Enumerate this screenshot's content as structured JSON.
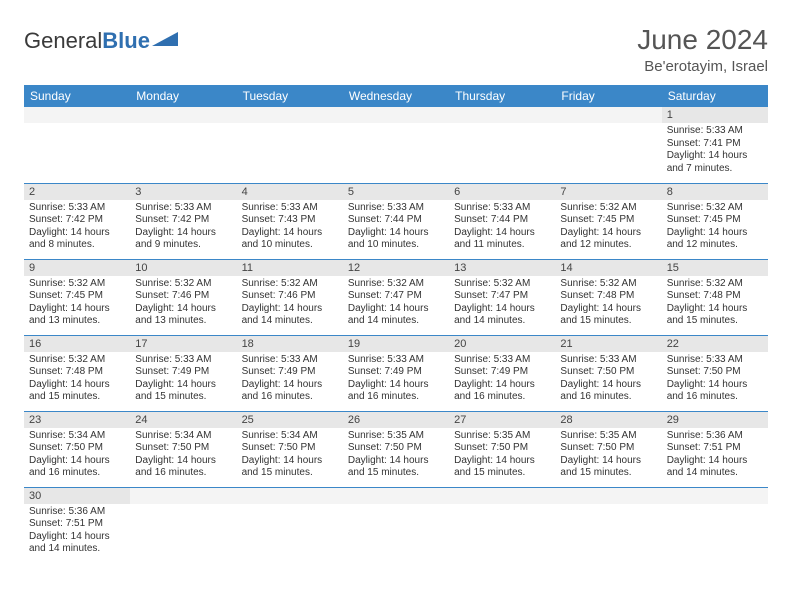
{
  "brand": {
    "part1": "General",
    "part2": "Blue"
  },
  "title": "June 2024",
  "location": "Be'erotayim, Israel",
  "colors": {
    "header_bg": "#3b87c8",
    "header_fg": "#ffffff",
    "daynum_bg": "#e7e7e7",
    "cell_border": "#3b87c8",
    "logo_blue": "#2f6fb0"
  },
  "weekdays": [
    "Sunday",
    "Monday",
    "Tuesday",
    "Wednesday",
    "Thursday",
    "Friday",
    "Saturday"
  ],
  "weeks": [
    [
      {
        "n": "",
        "lines": []
      },
      {
        "n": "",
        "lines": []
      },
      {
        "n": "",
        "lines": []
      },
      {
        "n": "",
        "lines": []
      },
      {
        "n": "",
        "lines": []
      },
      {
        "n": "",
        "lines": []
      },
      {
        "n": "1",
        "lines": [
          "Sunrise: 5:33 AM",
          "Sunset: 7:41 PM",
          "Daylight: 14 hours and 7 minutes."
        ]
      }
    ],
    [
      {
        "n": "2",
        "lines": [
          "Sunrise: 5:33 AM",
          "Sunset: 7:42 PM",
          "Daylight: 14 hours and 8 minutes."
        ]
      },
      {
        "n": "3",
        "lines": [
          "Sunrise: 5:33 AM",
          "Sunset: 7:42 PM",
          "Daylight: 14 hours and 9 minutes."
        ]
      },
      {
        "n": "4",
        "lines": [
          "Sunrise: 5:33 AM",
          "Sunset: 7:43 PM",
          "Daylight: 14 hours and 10 minutes."
        ]
      },
      {
        "n": "5",
        "lines": [
          "Sunrise: 5:33 AM",
          "Sunset: 7:44 PM",
          "Daylight: 14 hours and 10 minutes."
        ]
      },
      {
        "n": "6",
        "lines": [
          "Sunrise: 5:33 AM",
          "Sunset: 7:44 PM",
          "Daylight: 14 hours and 11 minutes."
        ]
      },
      {
        "n": "7",
        "lines": [
          "Sunrise: 5:32 AM",
          "Sunset: 7:45 PM",
          "Daylight: 14 hours and 12 minutes."
        ]
      },
      {
        "n": "8",
        "lines": [
          "Sunrise: 5:32 AM",
          "Sunset: 7:45 PM",
          "Daylight: 14 hours and 12 minutes."
        ]
      }
    ],
    [
      {
        "n": "9",
        "lines": [
          "Sunrise: 5:32 AM",
          "Sunset: 7:45 PM",
          "Daylight: 14 hours and 13 minutes."
        ]
      },
      {
        "n": "10",
        "lines": [
          "Sunrise: 5:32 AM",
          "Sunset: 7:46 PM",
          "Daylight: 14 hours and 13 minutes."
        ]
      },
      {
        "n": "11",
        "lines": [
          "Sunrise: 5:32 AM",
          "Sunset: 7:46 PM",
          "Daylight: 14 hours and 14 minutes."
        ]
      },
      {
        "n": "12",
        "lines": [
          "Sunrise: 5:32 AM",
          "Sunset: 7:47 PM",
          "Daylight: 14 hours and 14 minutes."
        ]
      },
      {
        "n": "13",
        "lines": [
          "Sunrise: 5:32 AM",
          "Sunset: 7:47 PM",
          "Daylight: 14 hours and 14 minutes."
        ]
      },
      {
        "n": "14",
        "lines": [
          "Sunrise: 5:32 AM",
          "Sunset: 7:48 PM",
          "Daylight: 14 hours and 15 minutes."
        ]
      },
      {
        "n": "15",
        "lines": [
          "Sunrise: 5:32 AM",
          "Sunset: 7:48 PM",
          "Daylight: 14 hours and 15 minutes."
        ]
      }
    ],
    [
      {
        "n": "16",
        "lines": [
          "Sunrise: 5:32 AM",
          "Sunset: 7:48 PM",
          "Daylight: 14 hours and 15 minutes."
        ]
      },
      {
        "n": "17",
        "lines": [
          "Sunrise: 5:33 AM",
          "Sunset: 7:49 PM",
          "Daylight: 14 hours and 15 minutes."
        ]
      },
      {
        "n": "18",
        "lines": [
          "Sunrise: 5:33 AM",
          "Sunset: 7:49 PM",
          "Daylight: 14 hours and 16 minutes."
        ]
      },
      {
        "n": "19",
        "lines": [
          "Sunrise: 5:33 AM",
          "Sunset: 7:49 PM",
          "Daylight: 14 hours and 16 minutes."
        ]
      },
      {
        "n": "20",
        "lines": [
          "Sunrise: 5:33 AM",
          "Sunset: 7:49 PM",
          "Daylight: 14 hours and 16 minutes."
        ]
      },
      {
        "n": "21",
        "lines": [
          "Sunrise: 5:33 AM",
          "Sunset: 7:50 PM",
          "Daylight: 14 hours and 16 minutes."
        ]
      },
      {
        "n": "22",
        "lines": [
          "Sunrise: 5:33 AM",
          "Sunset: 7:50 PM",
          "Daylight: 14 hours and 16 minutes."
        ]
      }
    ],
    [
      {
        "n": "23",
        "lines": [
          "Sunrise: 5:34 AM",
          "Sunset: 7:50 PM",
          "Daylight: 14 hours and 16 minutes."
        ]
      },
      {
        "n": "24",
        "lines": [
          "Sunrise: 5:34 AM",
          "Sunset: 7:50 PM",
          "Daylight: 14 hours and 16 minutes."
        ]
      },
      {
        "n": "25",
        "lines": [
          "Sunrise: 5:34 AM",
          "Sunset: 7:50 PM",
          "Daylight: 14 hours and 15 minutes."
        ]
      },
      {
        "n": "26",
        "lines": [
          "Sunrise: 5:35 AM",
          "Sunset: 7:50 PM",
          "Daylight: 14 hours and 15 minutes."
        ]
      },
      {
        "n": "27",
        "lines": [
          "Sunrise: 5:35 AM",
          "Sunset: 7:50 PM",
          "Daylight: 14 hours and 15 minutes."
        ]
      },
      {
        "n": "28",
        "lines": [
          "Sunrise: 5:35 AM",
          "Sunset: 7:50 PM",
          "Daylight: 14 hours and 15 minutes."
        ]
      },
      {
        "n": "29",
        "lines": [
          "Sunrise: 5:36 AM",
          "Sunset: 7:51 PM",
          "Daylight: 14 hours and 14 minutes."
        ]
      }
    ],
    [
      {
        "n": "30",
        "lines": [
          "Sunrise: 5:36 AM",
          "Sunset: 7:51 PM",
          "Daylight: 14 hours and 14 minutes."
        ]
      },
      {
        "n": "",
        "lines": []
      },
      {
        "n": "",
        "lines": []
      },
      {
        "n": "",
        "lines": []
      },
      {
        "n": "",
        "lines": []
      },
      {
        "n": "",
        "lines": []
      },
      {
        "n": "",
        "lines": []
      }
    ]
  ]
}
